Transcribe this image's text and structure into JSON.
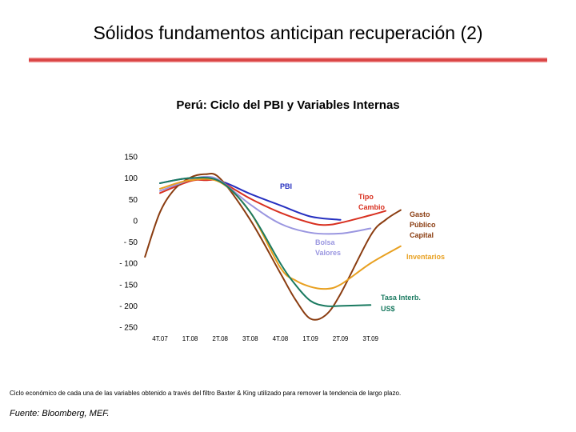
{
  "slide": {
    "title": "Sólidos fundamentos anticipan recuperación (2)",
    "footnote": "Ciclo económico de cada una de las variables obtenido a través del filtro Baxter & King utilizado para remover la tendencia de largo plazo.",
    "source": "Fuente: Bloomberg, MEF."
  },
  "colors": {
    "title_rule": "#d42e2e"
  },
  "chart_data": {
    "type": "line",
    "title": "Perú: Ciclo del PBI y Variables Internas",
    "xlabel": "",
    "ylabel": "",
    "ylim": [
      -250,
      150
    ],
    "yticks": [
      150,
      100,
      50,
      0,
      -50,
      -100,
      -150,
      -200,
      -250
    ],
    "ytick_labels": [
      "150",
      "100",
      "50",
      "0",
      "- 50",
      "- 100",
      "- 150",
      "- 200",
      "- 250"
    ],
    "xlim": [
      0,
      8
    ],
    "x_labels": [
      "4T.07",
      "1T.08",
      "2T.08",
      "3T.08",
      "4T.08",
      "1T.09",
      "2T.09",
      "3T.09"
    ],
    "grid": false,
    "series": [
      {
        "name": "PBI",
        "color": "#2630c0",
        "points": [
          [
            0,
            88
          ],
          [
            1,
            100
          ],
          [
            2,
            93
          ],
          [
            3,
            63
          ],
          [
            4,
            36
          ],
          [
            5,
            10
          ],
          [
            6,
            2
          ]
        ]
      },
      {
        "name": "Tipo Cambio",
        "color": "#d83020",
        "points": [
          [
            0,
            65
          ],
          [
            1,
            93
          ],
          [
            1.5,
            95
          ],
          [
            2,
            92
          ],
          [
            3,
            52
          ],
          [
            4,
            19
          ],
          [
            5,
            -5
          ],
          [
            5.5,
            -10
          ],
          [
            6,
            -5
          ],
          [
            7,
            13
          ],
          [
            7.5,
            23
          ]
        ]
      },
      {
        "name": "Gasto Público Capital",
        "color": "#8a3c10",
        "points": [
          [
            -0.5,
            -85
          ],
          [
            0,
            20
          ],
          [
            0.5,
            75
          ],
          [
            1,
            101
          ],
          [
            1.5,
            109
          ],
          [
            2,
            99
          ],
          [
            3,
            2
          ],
          [
            4,
            -123
          ],
          [
            4.5,
            -185
          ],
          [
            5,
            -230
          ],
          [
            5.5,
            -222
          ],
          [
            6,
            -172
          ],
          [
            7,
            -35
          ],
          [
            7.5,
            2
          ],
          [
            8,
            25
          ]
        ]
      },
      {
        "name": "Bolsa Valores",
        "color": "#9a96e0",
        "points": [
          [
            0,
            70
          ],
          [
            1,
            96
          ],
          [
            1.5,
            103
          ],
          [
            2,
            94
          ],
          [
            3,
            38
          ],
          [
            4,
            -7
          ],
          [
            5,
            -28
          ],
          [
            6,
            -30
          ],
          [
            7,
            -18
          ]
        ]
      },
      {
        "name": "Inventarios",
        "color": "#e8a020",
        "points": [
          [
            0,
            75
          ],
          [
            1,
            95
          ],
          [
            2,
            90
          ],
          [
            3,
            20
          ],
          [
            4,
            -110
          ],
          [
            4.5,
            -140
          ],
          [
            5,
            -155
          ],
          [
            5.5,
            -160
          ],
          [
            6,
            -150
          ],
          [
            7,
            -100
          ],
          [
            8,
            -60
          ]
        ]
      },
      {
        "name": "Tasa Interb. US$",
        "color": "#1a7a60",
        "points": [
          [
            0,
            88
          ],
          [
            1,
            100
          ],
          [
            2,
            92
          ],
          [
            3,
            20
          ],
          [
            4,
            -100
          ],
          [
            4.5,
            -150
          ],
          [
            5,
            -188
          ],
          [
            5.5,
            -200
          ],
          [
            6,
            -200
          ],
          [
            7,
            -198
          ]
        ]
      }
    ],
    "annotations": [
      "PBI",
      "Tipo Cambio",
      "Gasto Público Capital",
      "Bolsa Valores",
      "Inventarios",
      "Tasa Interb. US$"
    ]
  }
}
